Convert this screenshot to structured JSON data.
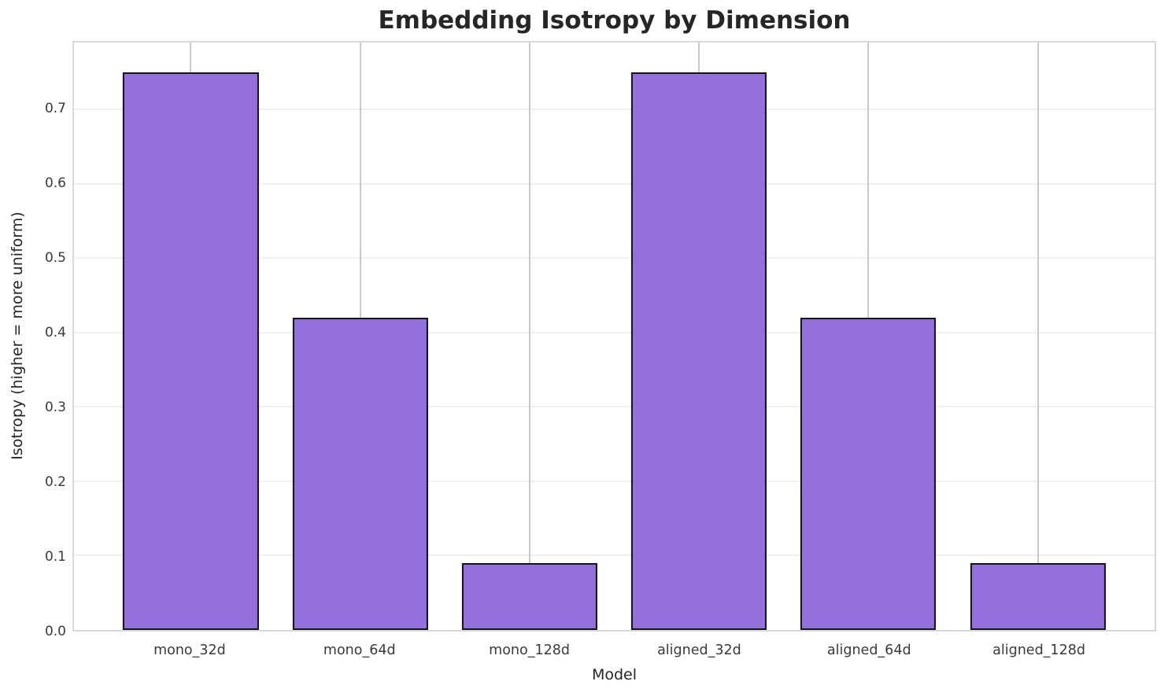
{
  "title": "Embedding Isotropy by Dimension",
  "chart_data": {
    "type": "bar",
    "title": "Embedding Isotropy by Dimension",
    "xlabel": "Model",
    "ylabel": "Isotropy (higher = more uniform)",
    "categories": [
      "mono_32d",
      "mono_64d",
      "mono_128d",
      "aligned_32d",
      "aligned_64d",
      "aligned_128d"
    ],
    "values": [
      0.75,
      0.42,
      0.09,
      0.75,
      0.42,
      0.09
    ],
    "ylim": [
      0,
      0.79
    ],
    "yticks": [
      0.0,
      0.1,
      0.2,
      0.3,
      0.4,
      0.5,
      0.6,
      0.7
    ],
    "ytick_labels": [
      "0.0",
      "0.1",
      "0.2",
      "0.3",
      "0.4",
      "0.5",
      "0.6",
      "0.7"
    ],
    "grid": true,
    "legend": null,
    "bar_width_fraction": 0.8,
    "colors": {
      "bar_fill": "#9370DB",
      "bar_edge": "#141414",
      "grid_horizontal": "#f0f0f0",
      "grid_vertical": "#c9c9c9",
      "spine": "#d9d9d9",
      "title_text": "#262626",
      "tick_text": "#3a3a3a"
    }
  }
}
